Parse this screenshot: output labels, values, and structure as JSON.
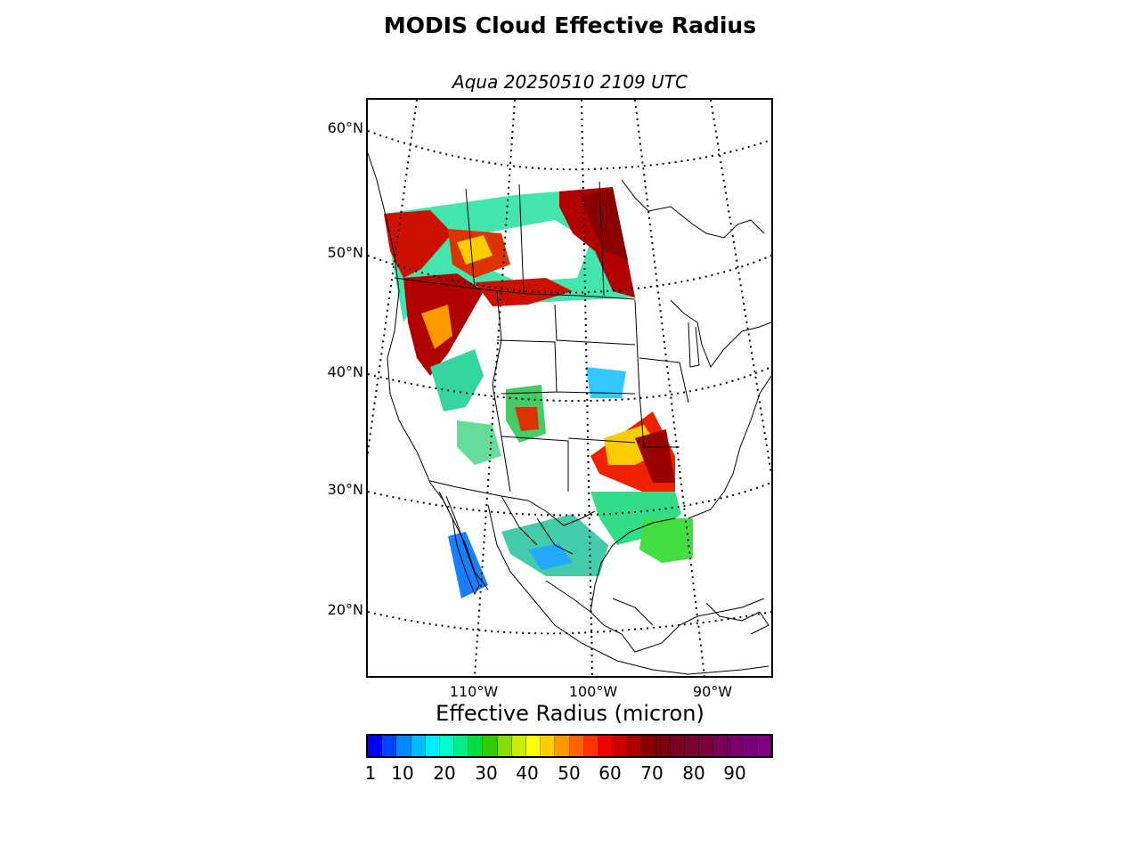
{
  "title": "MODIS Cloud Effective Radius",
  "subtitle": "Aqua 20250510 2109 UTC",
  "map": {
    "projection": "lambert-conformal",
    "extent": {
      "lon": [
        -119,
        -85
      ],
      "lat": [
        14,
        62
      ]
    },
    "lat_labels": [
      "60°N",
      "50°N",
      "40°N",
      "30°N",
      "20°N"
    ],
    "lon_labels": [
      "110°W",
      "100°W",
      "90°W"
    ],
    "colors": {
      "coastline": "#000000",
      "graticule": "#000000",
      "background": "#ffffff"
    }
  },
  "colorbar": {
    "title": "Effective Radius (micron)",
    "ticks": [
      "1",
      "10",
      "20",
      "30",
      "40",
      "50",
      "60",
      "70",
      "80",
      "90"
    ],
    "range": [
      1,
      99
    ],
    "colors": [
      "#0000ff",
      "#0044ff",
      "#0088ff",
      "#00bbff",
      "#00eeff",
      "#00ffcc",
      "#00ee88",
      "#00dd44",
      "#33cc00",
      "#88dd00",
      "#ccee00",
      "#ffff00",
      "#ffcc00",
      "#ff9900",
      "#ff6600",
      "#ff3300",
      "#ee0000",
      "#cc0000",
      "#aa0000",
      "#880000",
      "#7a0010",
      "#7a0020",
      "#7a0030",
      "#7a0040",
      "#7a0055",
      "#7a0066",
      "#7a0077",
      "#800080"
    ]
  }
}
